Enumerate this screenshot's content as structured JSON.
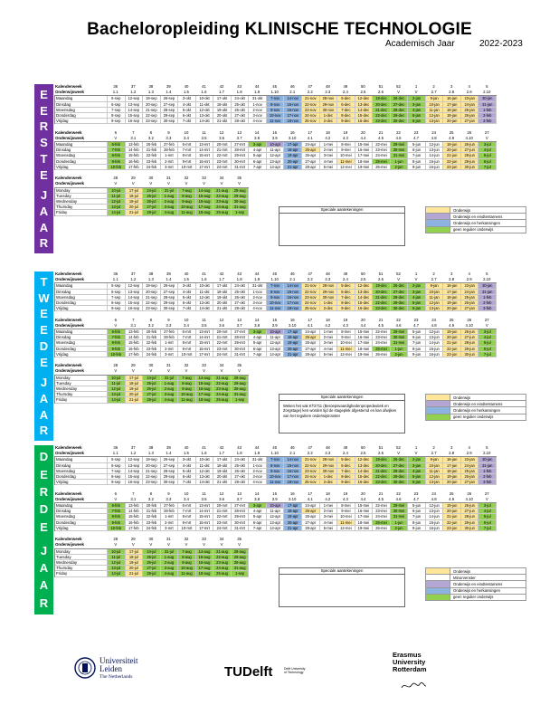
{
  "header": {
    "title": "Bacheloropleiding KLINISCHE TECHNOLOGIE",
    "subtitle": "Academisch Jaar",
    "years": "2022-2023"
  },
  "labels": {
    "kw": "Kalenderweek",
    "ow": "Onderwijsweek",
    "days": [
      "Maandag",
      "Dinsdag",
      "Woensdag",
      "Donderdag",
      "Vrijdag"
    ],
    "days_en": [
      "Monday",
      "Tuesday",
      "Wednesday",
      "Thursday",
      "Friday"
    ],
    "special": "Speciale aantekeningen"
  },
  "legend": [
    {
      "color": "#ffe699",
      "label": "Onderwijs"
    },
    {
      "color": "#b4a7d6",
      "label": "Onderwijs en eindtentamens"
    },
    {
      "color": "#8db3e2",
      "label": "Onderwijs en herkansingen"
    },
    {
      "color": "#92d050",
      "label": "geen regulier onderwijs"
    }
  ],
  "legend3": [
    {
      "color": "#ffe699",
      "label": "Onderwijs"
    },
    {
      "color": "#ffffff",
      "label": "Minorvenster"
    },
    {
      "color": "#b4a7d6",
      "label": "Onderwijs en eindtentamens"
    },
    {
      "color": "#8db3e2",
      "label": "Onderwijs en herkansingen"
    },
    {
      "color": "#92d050",
      "label": "geen regulier onderwijs"
    }
  ],
  "note": "Weken het vak KT2711 (Beroepsvaardighedenpropedeutiek en Zorgstage) ken worden tijd de stageplek afgestemd en kan afwijken van het reguliere onderwijsrooster",
  "years": [
    {
      "letters": [
        "E",
        "E",
        "R",
        "S",
        "T",
        "E",
        "",
        "J",
        "A",
        "A",
        "R"
      ],
      "color": "#7030a0"
    },
    {
      "letters": [
        "T",
        "W",
        "E",
        "E",
        "D",
        "E",
        "",
        "J",
        "A",
        "A",
        "R"
      ],
      "color": "#00b0f0"
    },
    {
      "letters": [
        "D",
        "E",
        "R",
        "D",
        "E",
        "",
        "J",
        "A",
        "A",
        "R"
      ],
      "color": "#00b050"
    }
  ],
  "seg1": {
    "kw": [
      "36",
      "37",
      "38",
      "39",
      "40",
      "41",
      "42",
      "43",
      "44",
      "45",
      "46",
      "47",
      "48",
      "49",
      "50",
      "51",
      "52",
      "1",
      "2",
      "3",
      "4",
      "5"
    ],
    "ow": [
      "1.1",
      "1.2",
      "1.3",
      "1.4",
      "1.5",
      "1.6",
      "1.7",
      "1.8",
      "1.9",
      "1.10",
      "2.1",
      "2.2",
      "2.3",
      "2.4",
      "2.5",
      "2.6",
      "V",
      "V",
      "2.7",
      "2.8",
      "2.9",
      "2.10"
    ],
    "days": [
      [
        "5-sep",
        "12-sep",
        "19-sep",
        "26-sep",
        "3-okt",
        "10-okt",
        "17-okt",
        "24-okt",
        "31-okt",
        "7-nov",
        "14-nov",
        "21-nov",
        "28-nov",
        "5-dec",
        "12-dec",
        "19-dec",
        "26-dec",
        "2-jan",
        "9-jan",
        "16-jan",
        "23-jan",
        "30-jan"
      ],
      [
        "6-sep",
        "13-sep",
        "20-sep",
        "27-sep",
        "4-okt",
        "11-okt",
        "18-okt",
        "25-okt",
        "1-nov",
        "8-nov",
        "15-nov",
        "22-nov",
        "29-nov",
        "6-dec",
        "13-dec",
        "20-dec",
        "27-dec",
        "3-jan",
        "10-jan",
        "17-jan",
        "24-jan",
        "31-jan"
      ],
      [
        "7-sep",
        "14-sep",
        "21-sep",
        "28-sep",
        "5-okt",
        "12-okt",
        "19-okt",
        "26-okt",
        "2-nov",
        "9-nov",
        "16-nov",
        "23-nov",
        "30-nov",
        "7-dec",
        "14-dec",
        "21-dec",
        "28-dec",
        "4-jan",
        "11-jan",
        "18-jan",
        "25-jan",
        "1-feb"
      ],
      [
        "8-sep",
        "15-sep",
        "22-sep",
        "29-sep",
        "6-okt",
        "13-okt",
        "20-okt",
        "27-okt",
        "3-nov",
        "10-nov",
        "17-nov",
        "24-nov",
        "1-dec",
        "8-dec",
        "15-dec",
        "22-dec",
        "29-dec",
        "5-jan",
        "12-jan",
        "19-jan",
        "26-jan",
        "2-feb"
      ],
      [
        "9-sep",
        "16-sep",
        "23-sep",
        "30-sep",
        "7-okt",
        "14-okt",
        "21-okt",
        "28-okt",
        "4-nov",
        "11-nov",
        "18-nov",
        "25-nov",
        "2-dec",
        "9-dec",
        "16-dec",
        "23-dec",
        "30-dec",
        "6-jan",
        "13-jan",
        "20-jan",
        "27-jan",
        "3-feb"
      ]
    ]
  },
  "seg2": {
    "kw": [
      "6",
      "7",
      "8",
      "9",
      "10",
      "11",
      "12",
      "13",
      "14",
      "15",
      "16",
      "17",
      "18",
      "19",
      "20",
      "21",
      "22",
      "23",
      "24",
      "25",
      "26",
      "27"
    ],
    "ow": [
      "V",
      "3.1",
      "3.2",
      "3.3",
      "3.4",
      "3.5",
      "3.6",
      "3.7",
      "3.8",
      "3.9",
      "3.10",
      "4.1",
      "4.2",
      "4.3",
      "4.4",
      "4.5",
      "4.6",
      "4.7",
      "4.8",
      "4.9",
      "4.10",
      "V"
    ],
    "days": [
      [
        "6-feb",
        "13-feb",
        "20-feb",
        "27-feb",
        "6-mrt",
        "13-mrt",
        "20-mrt",
        "27-mrt",
        "3-apr",
        "10-apr",
        "17-apr",
        "24-apr",
        "1-mei",
        "8-mei",
        "15-mei",
        "22-mei",
        "29-mei",
        "5-jun",
        "12-jun",
        "19-jun",
        "26-jun",
        "3-jul"
      ],
      [
        "7-feb",
        "14-feb",
        "21-feb",
        "28-feb",
        "7-mrt",
        "14-mrt",
        "21-mrt",
        "28-mrt",
        "4-apr",
        "11-apr",
        "18-apr",
        "25-apr",
        "2-mei",
        "9-mei",
        "16-mei",
        "23-mei",
        "30-mei",
        "6-jun",
        "13-jun",
        "20-jun",
        "27-jun",
        "4-jul"
      ],
      [
        "8-feb",
        "15-feb",
        "22-feb",
        "1-mrt",
        "8-mrt",
        "15-mrt",
        "22-mrt",
        "29-mrt",
        "5-apr",
        "12-apr",
        "19-apr",
        "26-apr",
        "3-mei",
        "10-mei",
        "17-mei",
        "24-mei",
        "31-mei",
        "7-jun",
        "14-jun",
        "21-jun",
        "28-jun",
        "5-jul"
      ],
      [
        "9-feb",
        "16-feb",
        "23-feb",
        "2-mrt",
        "9-mrt",
        "16-mrt",
        "23-mrt",
        "30-mrt",
        "6-apr",
        "13-apr",
        "20-apr",
        "27-apr",
        "4-mei",
        "11-mei",
        "18-mei",
        "25-mei",
        "1-jun",
        "8-jun",
        "15-jun",
        "22-jun",
        "29-jun",
        "6-jul"
      ],
      [
        "10-feb",
        "17-feb",
        "24-feb",
        "3-mrt",
        "10-mrt",
        "17-mrt",
        "24-mrt",
        "31-mrt",
        "7-apr",
        "14-apr",
        "21-apr",
        "28-apr",
        "5-mei",
        "12-mei",
        "19-mei",
        "26-mei",
        "2-jun",
        "9-jun",
        "16-jun",
        "23-jun",
        "30-jun",
        "7-jul"
      ]
    ]
  },
  "seg3": {
    "kw": [
      "28",
      "29",
      "30",
      "31",
      "32",
      "33",
      "34",
      "35"
    ],
    "ow": [
      "V",
      "V",
      "V",
      "V",
      "V",
      "V",
      "V",
      "V"
    ],
    "days": [
      [
        "10-jul",
        "17-jul",
        "24-jul",
        "31-jul",
        "7-aug",
        "14-aug",
        "21-aug",
        "28-aug"
      ],
      [
        "11-jul",
        "18-jul",
        "25-jul",
        "1-aug",
        "8-aug",
        "15-aug",
        "22-aug",
        "29-aug"
      ],
      [
        "12-jul",
        "19-jul",
        "26-jul",
        "2-aug",
        "9-aug",
        "16-aug",
        "23-aug",
        "30-aug"
      ],
      [
        "13-jul",
        "20-jul",
        "27-jul",
        "3-aug",
        "10-aug",
        "17-aug",
        "24-aug",
        "31-aug"
      ],
      [
        "14-jul",
        "21-jul",
        "28-jul",
        "4-aug",
        "11-aug",
        "18-aug",
        "25-aug",
        "1-sep"
      ]
    ]
  },
  "footer": {
    "leiden1": "Universiteit",
    "leiden2": "Leiden",
    "leiden3": "The Netherlands",
    "tud": "TUDelft",
    "tud_small": "Delft University of Technology",
    "eur1": "Erasmus",
    "eur2": "University",
    "eur3": "Rotterdam"
  }
}
